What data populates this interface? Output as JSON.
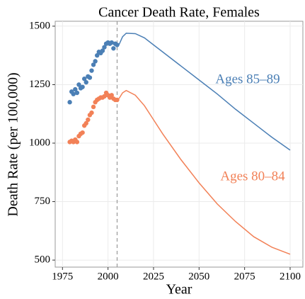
{
  "chart_data": {
    "type": "line",
    "title": "Cancer Death Rate, Females",
    "x_label": "Year",
    "y_label": "Death Rate (per 100,000)",
    "xlim": [
      1971,
      2107
    ],
    "ylim": [
      470,
      1521
    ],
    "xticks": [
      1975,
      2000,
      2025,
      2050,
      2075,
      2100
    ],
    "yticks": [
      500,
      750,
      1000,
      1250,
      1500
    ],
    "grid": true,
    "vline": 2005,
    "series": [
      {
        "name": "Ages 85–89",
        "color": "#4b7fb5",
        "points_x": [
          1979,
          1980,
          1981,
          1982,
          1983,
          1984,
          1985,
          1986,
          1987,
          1988,
          1989,
          1990,
          1991,
          1992,
          1993,
          1994,
          1995,
          1996,
          1997,
          1998,
          1999,
          2000,
          2001,
          2002,
          2003,
          2004,
          2005
        ],
        "points": [
          1175,
          1220,
          1210,
          1230,
          1215,
          1250,
          1235,
          1240,
          1275,
          1260,
          1285,
          1280,
          1310,
          1335,
          1350,
          1375,
          1390,
          1385,
          1395,
          1410,
          1425,
          1430,
          1425,
          1430,
          1405,
          1425,
          1420
        ],
        "x": [
          2006,
          2008,
          2010,
          2015,
          2020,
          2025,
          2030,
          2040,
          2050,
          2060,
          2070,
          2080,
          2090,
          2100
        ],
        "values": [
          1420,
          1455,
          1470,
          1468,
          1450,
          1420,
          1390,
          1330,
          1270,
          1210,
          1145,
          1085,
          1025,
          970
        ]
      },
      {
        "name": "Ages 80–84",
        "color": "#f28157",
        "points_x": [
          1979,
          1980,
          1981,
          1982,
          1983,
          1984,
          1985,
          1986,
          1987,
          1988,
          1989,
          1990,
          1991,
          1992,
          1993,
          1994,
          1995,
          1996,
          1997,
          1998,
          1999,
          2000,
          2001,
          2002,
          2003,
          2004,
          2005
        ],
        "points": [
          1005,
          1010,
          1005,
          1015,
          1005,
          1030,
          1040,
          1045,
          1075,
          1085,
          1100,
          1120,
          1130,
          1155,
          1175,
          1185,
          1190,
          1195,
          1195,
          1200,
          1215,
          1205,
          1195,
          1205,
          1190,
          1185,
          1185
        ],
        "x": [
          2006,
          2008,
          2010,
          2015,
          2020,
          2025,
          2030,
          2040,
          2050,
          2060,
          2070,
          2080,
          2090,
          2100
        ],
        "values": [
          1190,
          1215,
          1225,
          1205,
          1160,
          1100,
          1040,
          930,
          830,
          740,
          665,
          600,
          555,
          525
        ]
      }
    ]
  }
}
